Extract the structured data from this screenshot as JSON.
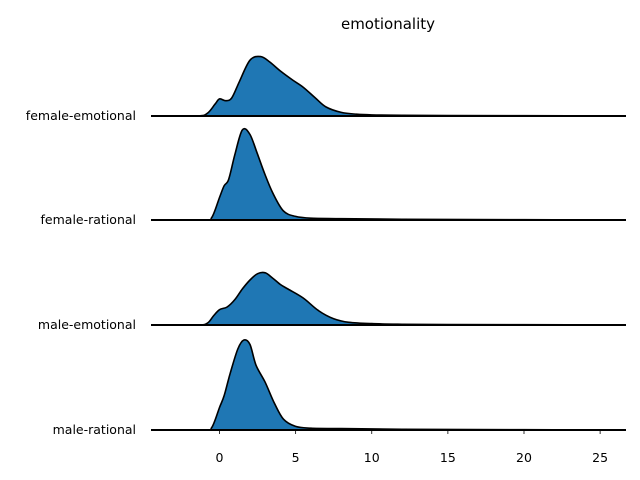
{
  "chart_data": {
    "type": "ridgeline",
    "title": "emotionality",
    "xlabel": "",
    "ylabel": "",
    "xlim": [
      -4.5,
      26.7
    ],
    "x_ticks": [
      0,
      5,
      10,
      15,
      20,
      25
    ],
    "fill_color": "#1f77b4",
    "line_color": "#000000",
    "grid": false,
    "series": [
      {
        "name": "female-emotional",
        "x": [
          -4.5,
          -1.5,
          -0.8,
          -0.3,
          0.0,
          0.4,
          0.8,
          1.3,
          2.0,
          2.7,
          3.3,
          4.0,
          4.8,
          5.5,
          6.3,
          7.0,
          8.0,
          9.0,
          10.0,
          12.0,
          15.0,
          20.0,
          26.7
        ],
        "y": [
          0.0,
          0.0,
          0.03,
          0.13,
          0.19,
          0.17,
          0.2,
          0.38,
          0.62,
          0.66,
          0.6,
          0.5,
          0.4,
          0.32,
          0.2,
          0.1,
          0.04,
          0.02,
          0.012,
          0.008,
          0.005,
          0.003,
          0.0
        ]
      },
      {
        "name": "female-rational",
        "x": [
          -4.5,
          -1.0,
          -0.5,
          0.0,
          0.3,
          0.6,
          1.0,
          1.5,
          2.0,
          2.5,
          3.0,
          3.5,
          4.2,
          5.0,
          6.0,
          8.0,
          12.0,
          20.0,
          26.7
        ],
        "y": [
          0.0,
          0.0,
          0.03,
          0.25,
          0.38,
          0.45,
          0.72,
          1.0,
          0.95,
          0.73,
          0.5,
          0.3,
          0.1,
          0.04,
          0.02,
          0.015,
          0.008,
          0.003,
          0.0
        ]
      },
      {
        "name": "male-emotional",
        "x": [
          -4.5,
          -1.5,
          -0.8,
          -0.4,
          0.0,
          0.5,
          1.0,
          1.5,
          2.0,
          2.5,
          3.0,
          3.5,
          4.0,
          4.5,
          5.5,
          6.5,
          7.5,
          8.5,
          10.0,
          12.0,
          15.0,
          20.0,
          26.7
        ],
        "y": [
          0.0,
          0.0,
          0.02,
          0.1,
          0.17,
          0.2,
          0.28,
          0.4,
          0.5,
          0.57,
          0.58,
          0.52,
          0.45,
          0.4,
          0.3,
          0.16,
          0.07,
          0.03,
          0.015,
          0.008,
          0.005,
          0.003,
          0.0
        ]
      },
      {
        "name": "male-rational",
        "x": [
          -4.5,
          -1.0,
          -0.5,
          0.0,
          0.3,
          0.7,
          1.2,
          1.6,
          2.0,
          2.4,
          3.0,
          3.6,
          4.2,
          5.0,
          6.0,
          8.0,
          12.0,
          20.0,
          26.7
        ],
        "y": [
          0.0,
          0.0,
          0.03,
          0.25,
          0.38,
          0.63,
          0.9,
          1.0,
          0.95,
          0.72,
          0.53,
          0.3,
          0.12,
          0.04,
          0.02,
          0.015,
          0.008,
          0.003,
          0.0
        ]
      }
    ]
  }
}
